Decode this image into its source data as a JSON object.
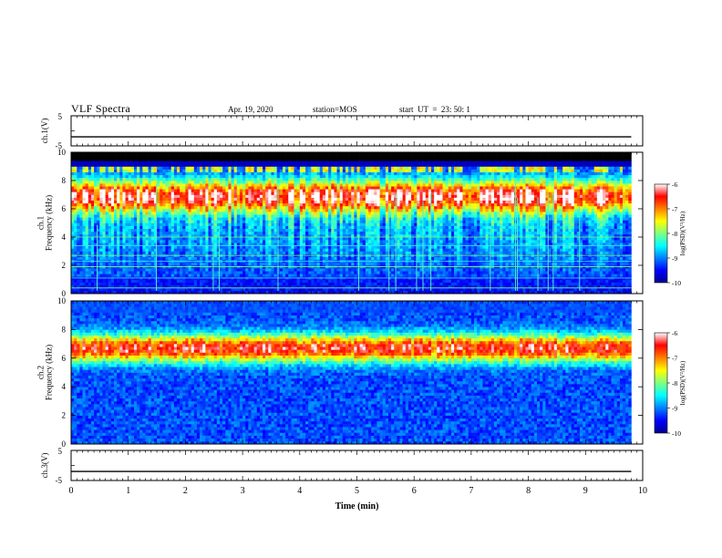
{
  "header": {
    "title": "VLF Spectra",
    "date": "Apr. 19, 2020",
    "station": "station=MOS",
    "start": "start  UT  =  23: 50: 1"
  },
  "chart_data": [
    {
      "type": "line",
      "ylabel": "ch.1(V)",
      "ylim": [
        -5,
        5
      ],
      "ytick_labels": [
        "5",
        "-5"
      ],
      "series": [
        {
          "x": [
            0,
            9.8
          ],
          "values": [
            -2,
            -2
          ]
        }
      ]
    },
    {
      "type": "heatmap",
      "ylabel": "ch.1\nFrequency (kHz)",
      "ylim": [
        0,
        10
      ],
      "yticks": [
        0,
        2,
        4,
        6,
        8,
        10
      ],
      "xlim": [
        0,
        10
      ],
      "x_data_end": 9.8,
      "colorbar": {
        "label": "log(PSD)(V²/Hz)",
        "range": [
          -10,
          -6
        ],
        "tick_labels": [
          "-6",
          "-7",
          "-8",
          "-9",
          "-10"
        ]
      }
    },
    {
      "type": "heatmap",
      "ylabel": "ch.2\nFrequency (kHz)",
      "ylim": [
        0,
        10
      ],
      "yticks": [
        0,
        2,
        4,
        6,
        8,
        10
      ],
      "xlim": [
        0,
        10
      ],
      "x_data_end": 9.8,
      "colorbar": {
        "label": "log(PSD)(V²/Hz)",
        "range": [
          -10,
          -6
        ],
        "tick_labels": [
          "-6",
          "-7",
          "-8",
          "-9",
          "-10"
        ]
      }
    },
    {
      "type": "line",
      "ylabel": "ch.3(V)",
      "ylim": [
        -5,
        5
      ],
      "ytick_labels": [
        "5",
        "-5"
      ],
      "xlabel": "Time (min)",
      "xlim": [
        0,
        10
      ],
      "xtick_labels": [
        "0",
        "1",
        "2",
        "3",
        "4",
        "5",
        "6",
        "7",
        "8",
        "9",
        "10"
      ],
      "series": [
        {
          "x": [
            0,
            9.8
          ],
          "values": [
            -2,
            -2
          ]
        }
      ]
    }
  ]
}
